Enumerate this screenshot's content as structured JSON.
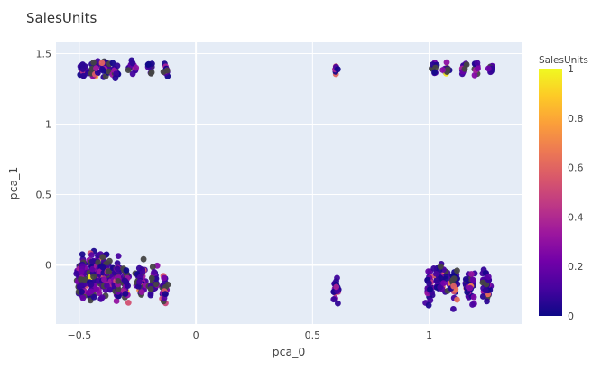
{
  "chart_data": {
    "type": "scatter",
    "title": "SalesUnits",
    "xlabel": "pca_0",
    "ylabel": "pca_1",
    "xlim": [
      -0.6,
      1.4
    ],
    "ylim": [
      -0.42,
      1.58
    ],
    "x_ticks": [
      {
        "value": -0.5,
        "label": "−0.5"
      },
      {
        "value": 0,
        "label": "0"
      },
      {
        "value": 0.5,
        "label": "0.5"
      },
      {
        "value": 1,
        "label": "1"
      }
    ],
    "y_ticks": [
      {
        "value": 0,
        "label": "0"
      },
      {
        "value": 0.5,
        "label": "0.5"
      },
      {
        "value": 1,
        "label": "1"
      },
      {
        "value": 1.5,
        "label": "1.5"
      }
    ],
    "grid": true,
    "colorbar": {
      "title": "SalesUnits",
      "range": [
        0,
        1
      ],
      "ticks": [
        {
          "value": 0,
          "label": "0"
        },
        {
          "value": 0.2,
          "label": "0.2"
        },
        {
          "value": 0.4,
          "label": "0.4"
        },
        {
          "value": 0.6,
          "label": "0.6"
        },
        {
          "value": 0.8,
          "label": "0.8"
        },
        {
          "value": 1,
          "label": "1"
        }
      ],
      "colorscale": [
        "#0d0887",
        "#46039f",
        "#7201a8",
        "#9c179e",
        "#bd3786",
        "#d8576b",
        "#ed7953",
        "#fb9f3a",
        "#fdca26",
        "#f0f921"
      ]
    },
    "plot_background": "#e5ecf6",
    "clusters": [
      {
        "x_center": -0.485,
        "x_spread": 0.018,
        "y_center": 1.385,
        "y_spread": 0.045,
        "count": 18
      },
      {
        "x_center": -0.44,
        "x_spread": 0.018,
        "y_center": 1.39,
        "y_spread": 0.05,
        "count": 22
      },
      {
        "x_center": -0.39,
        "x_spread": 0.02,
        "y_center": 1.39,
        "y_spread": 0.05,
        "count": 26
      },
      {
        "x_center": -0.345,
        "x_spread": 0.012,
        "y_center": 1.39,
        "y_spread": 0.045,
        "count": 14
      },
      {
        "x_center": -0.275,
        "x_spread": 0.015,
        "y_center": 1.4,
        "y_spread": 0.045,
        "count": 14
      },
      {
        "x_center": -0.195,
        "x_spread": 0.01,
        "y_center": 1.4,
        "y_spread": 0.04,
        "count": 10
      },
      {
        "x_center": -0.13,
        "x_spread": 0.01,
        "y_center": 1.39,
        "y_spread": 0.04,
        "count": 10
      },
      {
        "x_center": 0.6,
        "x_spread": 0.007,
        "y_center": 1.4,
        "y_spread": 0.035,
        "count": 6
      },
      {
        "x_center": 1.02,
        "x_spread": 0.01,
        "y_center": 1.39,
        "y_spread": 0.045,
        "count": 10
      },
      {
        "x_center": 1.075,
        "x_spread": 0.013,
        "y_center": 1.39,
        "y_spread": 0.045,
        "count": 14
      },
      {
        "x_center": 1.15,
        "x_spread": 0.012,
        "y_center": 1.39,
        "y_spread": 0.045,
        "count": 12
      },
      {
        "x_center": 1.205,
        "x_spread": 0.01,
        "y_center": 1.39,
        "y_spread": 0.04,
        "count": 10
      },
      {
        "x_center": 1.265,
        "x_spread": 0.01,
        "y_center": 1.39,
        "y_spread": 0.04,
        "count": 10
      },
      {
        "x_center": -0.49,
        "x_spread": 0.02,
        "y_center": -0.11,
        "y_spread": 0.11,
        "count": 70
      },
      {
        "x_center": -0.44,
        "x_spread": 0.02,
        "y_center": -0.09,
        "y_spread": 0.12,
        "count": 85
      },
      {
        "x_center": -0.39,
        "x_spread": 0.025,
        "y_center": -0.08,
        "y_spread": 0.12,
        "count": 95
      },
      {
        "x_center": -0.34,
        "x_spread": 0.015,
        "y_center": -0.1,
        "y_spread": 0.11,
        "count": 55
      },
      {
        "x_center": -0.3,
        "x_spread": 0.012,
        "y_center": -0.12,
        "y_spread": 0.1,
        "count": 35
      },
      {
        "x_center": -0.235,
        "x_spread": 0.018,
        "y_center": -0.12,
        "y_spread": 0.1,
        "count": 45
      },
      {
        "x_center": -0.18,
        "x_spread": 0.015,
        "y_center": -0.12,
        "y_spread": 0.1,
        "count": 35
      },
      {
        "x_center": -0.13,
        "x_spread": 0.012,
        "y_center": -0.17,
        "y_spread": 0.08,
        "count": 25
      },
      {
        "x_center": 0.6,
        "x_spread": 0.01,
        "y_center": -0.17,
        "y_spread": 0.09,
        "count": 22
      },
      {
        "x_center": 1.0,
        "x_spread": 0.012,
        "y_center": -0.15,
        "y_spread": 0.1,
        "count": 30
      },
      {
        "x_center": 1.05,
        "x_spread": 0.02,
        "y_center": -0.12,
        "y_spread": 0.1,
        "count": 50
      },
      {
        "x_center": 1.105,
        "x_spread": 0.015,
        "y_center": -0.13,
        "y_spread": 0.1,
        "count": 40
      },
      {
        "x_center": 1.175,
        "x_spread": 0.015,
        "y_center": -0.15,
        "y_spread": 0.1,
        "count": 40
      },
      {
        "x_center": 1.245,
        "x_spread": 0.015,
        "y_center": -0.14,
        "y_spread": 0.1,
        "count": 40
      }
    ]
  }
}
